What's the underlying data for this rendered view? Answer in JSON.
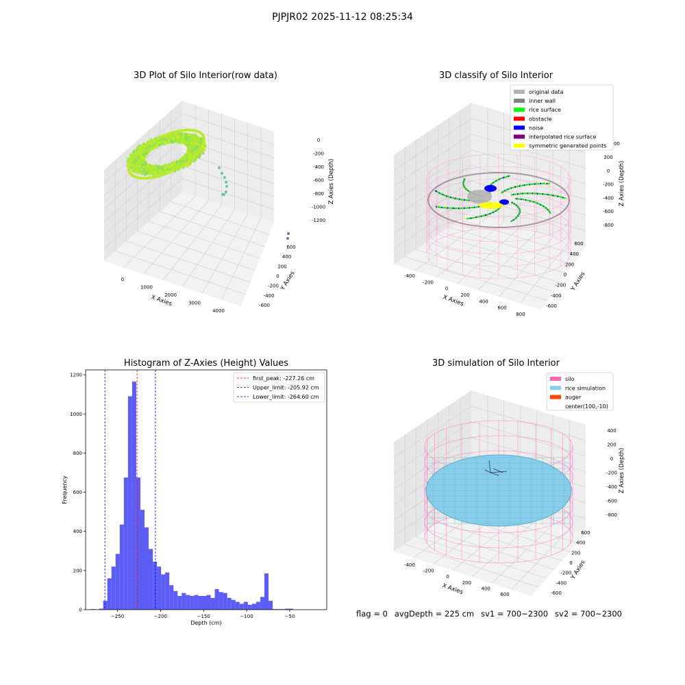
{
  "figure": {
    "suptitle": "PJPJR02 2025-11-12 08:25:34",
    "status": {
      "flag": "flag = 0",
      "avg_depth": "avgDepth = 225 cm",
      "sv1": "sv1 = 700~2300",
      "sv2": "sv2 = 700~2300"
    }
  },
  "colors": {
    "original": "#b3b3b3",
    "inner_wall": "#808080",
    "rice_surface": "#00ff00",
    "obstacle": "#ff0000",
    "noise": "#0000ff",
    "interpolated": "#800080",
    "symmetric": "#ffff00",
    "silo": "#ff69b4",
    "rice_sim": "#87ceeb",
    "auger": "#ff4500",
    "hist_bar": "#5353f5"
  },
  "chart_data": [
    {
      "type": "scatter3d",
      "title": "3D Plot of Silo Interior(row data)",
      "xlabel": "X Axies",
      "ylabel": "Y Axies",
      "zlabel": "Z Axies (Depth)",
      "x_ticks": [
        "0",
        "1000",
        "2000",
        "3000",
        "4000"
      ],
      "y_ticks": [
        "-600",
        "-400",
        "-200",
        "0",
        "200",
        "400",
        "600"
      ],
      "z_ticks": [
        "0",
        "-200",
        "-400",
        "-600",
        "-800",
        "-1000",
        "-1200"
      ],
      "grid": true
    },
    {
      "type": "scatter3d",
      "title": "3D classify of Silo Interior",
      "xlabel": "X Axies",
      "ylabel": "Y Axies",
      "zlabel": "Z Axies (Depth)",
      "x_ticks": [
        "-400",
        "-200",
        "0",
        "200",
        "400",
        "600",
        "800"
      ],
      "y_ticks": [
        "-600",
        "-400",
        "-200",
        "0",
        "200",
        "400",
        "600"
      ],
      "z_ticks": [
        "200",
        "0",
        "-200",
        "-400",
        "-600",
        "-800"
      ],
      "z_partial_tick": "00",
      "legend": [
        "original data",
        "inner wall",
        "rice surface",
        "obstacle",
        "noise",
        "interpolated rice surface",
        "symmetric generated points"
      ],
      "legend_position": "top-right",
      "grid": true
    },
    {
      "type": "bar",
      "title": "Histogram of Z-Axies (Height) Values",
      "xlabel": "Depth (cm)",
      "ylabel": "Frequency",
      "xlim": [
        -287,
        -7
      ],
      "ylim": [
        0,
        1225
      ],
      "x_ticks": [
        -250,
        -200,
        -150,
        -100,
        -50
      ],
      "y_ticks": [
        0,
        200,
        400,
        600,
        800,
        1000,
        1200
      ],
      "bin_width": 4.8,
      "bin_start": -281,
      "values": [
        3,
        0,
        5,
        45,
        160,
        220,
        285,
        435,
        675,
        1090,
        1165,
        675,
        510,
        420,
        310,
        245,
        220,
        180,
        190,
        125,
        95,
        70,
        85,
        75,
        70,
        75,
        70,
        70,
        75,
        60,
        105,
        90,
        85,
        60,
        50,
        40,
        30,
        40,
        25,
        30,
        40,
        65,
        185,
        45,
        3,
        3,
        3,
        5,
        5
      ],
      "vlines": [
        {
          "label": "first_peak: -227.26 cm",
          "x": -227.26,
          "color": "#ff0000"
        },
        {
          "label": "Upper_limit: -205.92 cm",
          "x": -205.92,
          "color": "#0000ff"
        },
        {
          "label": "Lower_limit: -264.60 cm",
          "x": -264.6,
          "color": "#0000ff"
        }
      ],
      "legend_position": "top-right",
      "grid": false
    },
    {
      "type": "surface3d",
      "title": "3D simulation of Silo Interior",
      "xlabel": "X Axies",
      "ylabel": "Y Axies",
      "zlabel": "Z Axies (Depth)",
      "x_ticks": [
        "-400",
        "-200",
        "0",
        "200",
        "400",
        "600"
      ],
      "y_ticks": [
        "-600",
        "-400",
        "-200",
        "0",
        "200",
        "400",
        "600"
      ],
      "z_ticks": [
        "400",
        "200",
        "0",
        "-200",
        "-400",
        "-600",
        "-800"
      ],
      "legend": [
        "silo",
        "rice simulation",
        "auger",
        "center(100,-10)"
      ],
      "legend_position": "top-right",
      "grid": true
    }
  ]
}
